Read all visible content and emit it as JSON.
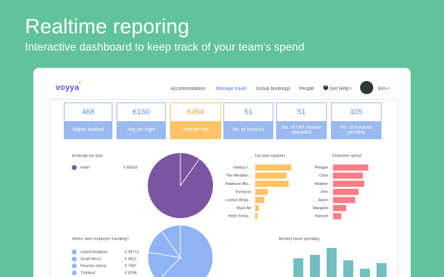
{
  "header": {
    "title": "Realtime reporing",
    "subtitle": "Interactive dashboard to keep track of your team’s spend"
  },
  "nav": {
    "logo": "voyya",
    "links": [
      "Accommodation",
      "Manage travel",
      "Group bookings",
      "People"
    ],
    "help": "Get Help",
    "user": "Kim"
  },
  "cards": [
    {
      "value": "468",
      "label": "Nights booked"
    },
    {
      "value": "€160",
      "label": "Avg per night"
    },
    {
      "value": "€454",
      "label": "Avg per trip"
    },
    {
      "value": "51",
      "label": "No. of invoices"
    },
    {
      "value": "51",
      "label": "No. of VAT invoice uploaded"
    },
    {
      "value": "105",
      "label": "No. of invoices pending"
    }
  ],
  "chart_data": [
    {
      "type": "pie",
      "title": "Bookings per type:",
      "categories": [
        "Hotel"
      ],
      "values": [
        68918
      ],
      "value_labels": [
        "€ 68918"
      ],
      "color": "#7b55a0"
    },
    {
      "type": "bar",
      "orientation": "horizontal",
      "title": "Top paid suppliers:",
      "categories": [
        "Holiday I...",
        "The Meridian...",
        "Radisson Blu...",
        "Europcar",
        "London Bridg...",
        "Ryan Air",
        "Hotel Xenia..."
      ],
      "values": [
        52,
        45,
        48,
        18,
        13,
        5,
        3
      ],
      "xlim": [
        0,
        60
      ],
      "color": "#fcc466"
    },
    {
      "type": "bar",
      "orientation": "horizontal",
      "title": "Employee spend:",
      "categories": [
        "Philippe",
        "Chris",
        "Heather",
        "John",
        "Adam",
        "Margaret",
        "Hannah"
      ],
      "values": [
        51,
        43,
        45,
        37,
        32,
        19,
        12
      ],
      "xlim": [
        0,
        60
      ],
      "color": "#f67f89"
    },
    {
      "type": "pie",
      "title": "Where awre employee travelling?",
      "categories": [
        "United Kingdom",
        "South Africa",
        "Reunion Island",
        "Thailand"
      ],
      "values": [
        39773,
        9812,
        7987,
        6296
      ],
      "value_labels": [
        "€ 39773",
        "€ 9812",
        "€ 7987",
        "€ 6296"
      ],
      "color": "#8fb3f5"
    },
    {
      "type": "bar",
      "orientation": "vertical",
      "title": "Monthly travel spending:",
      "categories": [
        null,
        null,
        null,
        null,
        null,
        null
      ],
      "values": [
        23.5,
        26,
        31,
        22,
        16,
        20
      ],
      "ylim": [
        0,
        50
      ],
      "color": "#72bec0"
    }
  ]
}
